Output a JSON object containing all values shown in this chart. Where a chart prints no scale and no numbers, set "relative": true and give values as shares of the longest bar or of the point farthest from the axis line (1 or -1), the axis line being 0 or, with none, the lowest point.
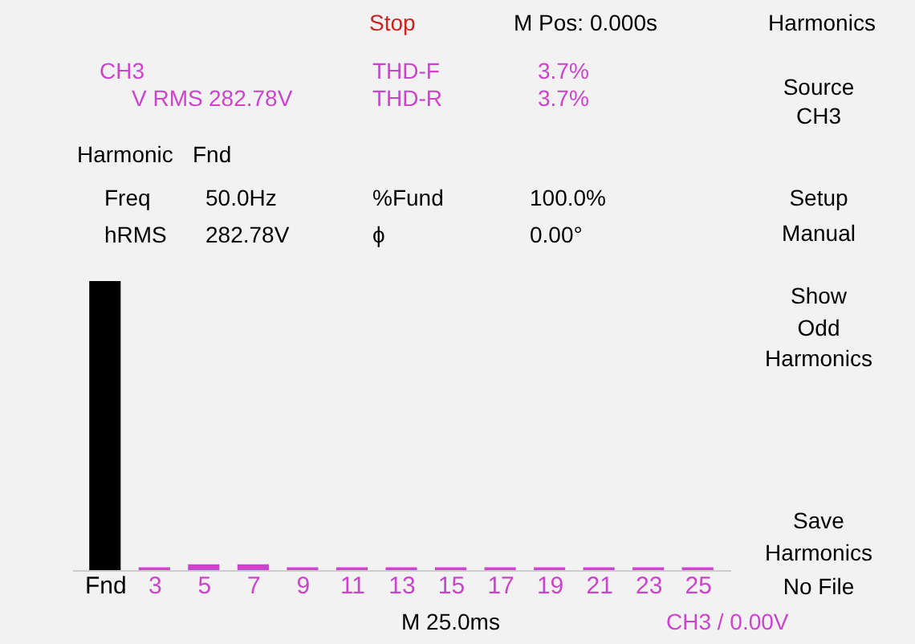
{
  "chart_data": {
    "type": "bar",
    "relative": true,
    "categories": [
      "Fnd",
      "3",
      "5",
      "7",
      "9",
      "11",
      "13",
      "15",
      "17",
      "19",
      "21",
      "23",
      "25"
    ],
    "values": [
      1,
      0.01,
      0.02,
      0.02,
      0.01,
      0.01,
      0.01,
      0.01,
      0.01,
      0.01,
      0.01,
      0.01,
      0.01
    ],
    "colors": [
      "#000000",
      "#cc44cc",
      "#cc44cc",
      "#cc44cc",
      "#cc44cc",
      "#cc44cc",
      "#cc44cc",
      "#cc44cc",
      "#cc44cc",
      "#cc44cc",
      "#cc44cc",
      "#cc44cc",
      "#cc44cc"
    ],
    "grid": false,
    "annotations": [
      "Stop",
      "M Pos: 0.000s",
      "Harmonics",
      "CH3",
      "V RMS",
      "282.78V",
      "THD-F",
      "3.7%",
      "THD-R",
      "3.7%",
      "Harmonic",
      "Fnd",
      "Freq",
      "50.0Hz",
      "%Fund",
      "100.0%",
      "hRMS",
      "282.78V",
      "ϕ",
      "0.00°",
      "Source",
      "CH3",
      "Setup",
      "Manual",
      "Show",
      "Odd",
      "Harmonics",
      "Save",
      "Harmonics",
      "No File",
      "M 25.0ms",
      "CH3 / 0.00V"
    ]
  }
}
